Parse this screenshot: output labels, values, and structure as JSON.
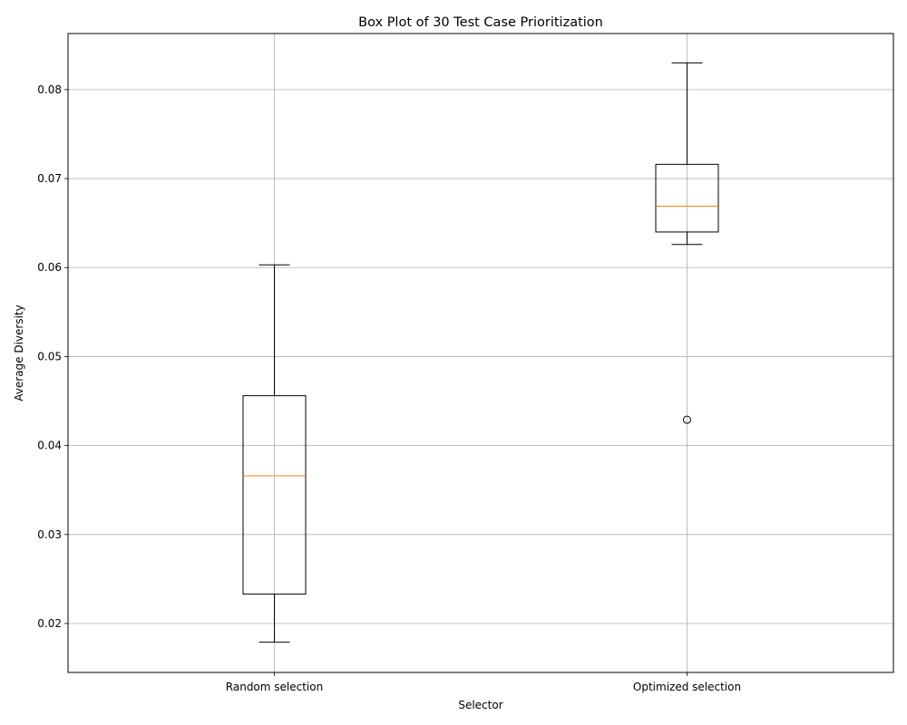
{
  "chart_data": {
    "type": "box",
    "title": "Box Plot of 30 Test Case Prioritization",
    "xlabel": "Selector",
    "ylabel": "Average Diversity",
    "categories": [
      "Random selection",
      "Optimized selection"
    ],
    "ylim": [
      0.0145,
      0.0863
    ],
    "yticks": [
      "0.02",
      "0.03",
      "0.04",
      "0.05",
      "0.06",
      "0.07",
      "0.08"
    ],
    "grid": true,
    "boxes": [
      {
        "category": "Random selection",
        "whisker_low": 0.0179,
        "q1": 0.0233,
        "median": 0.0366,
        "q3": 0.0456,
        "whisker_high": 0.0603,
        "outliers": []
      },
      {
        "category": "Optimized selection",
        "whisker_low": 0.0626,
        "q1": 0.064,
        "median": 0.0669,
        "q3": 0.0716,
        "whisker_high": 0.083,
        "outliers": [
          0.0429
        ]
      }
    ],
    "colors": {
      "box": "#000000",
      "median": "#ff7f0e",
      "grid": "#b0b0b0"
    }
  }
}
